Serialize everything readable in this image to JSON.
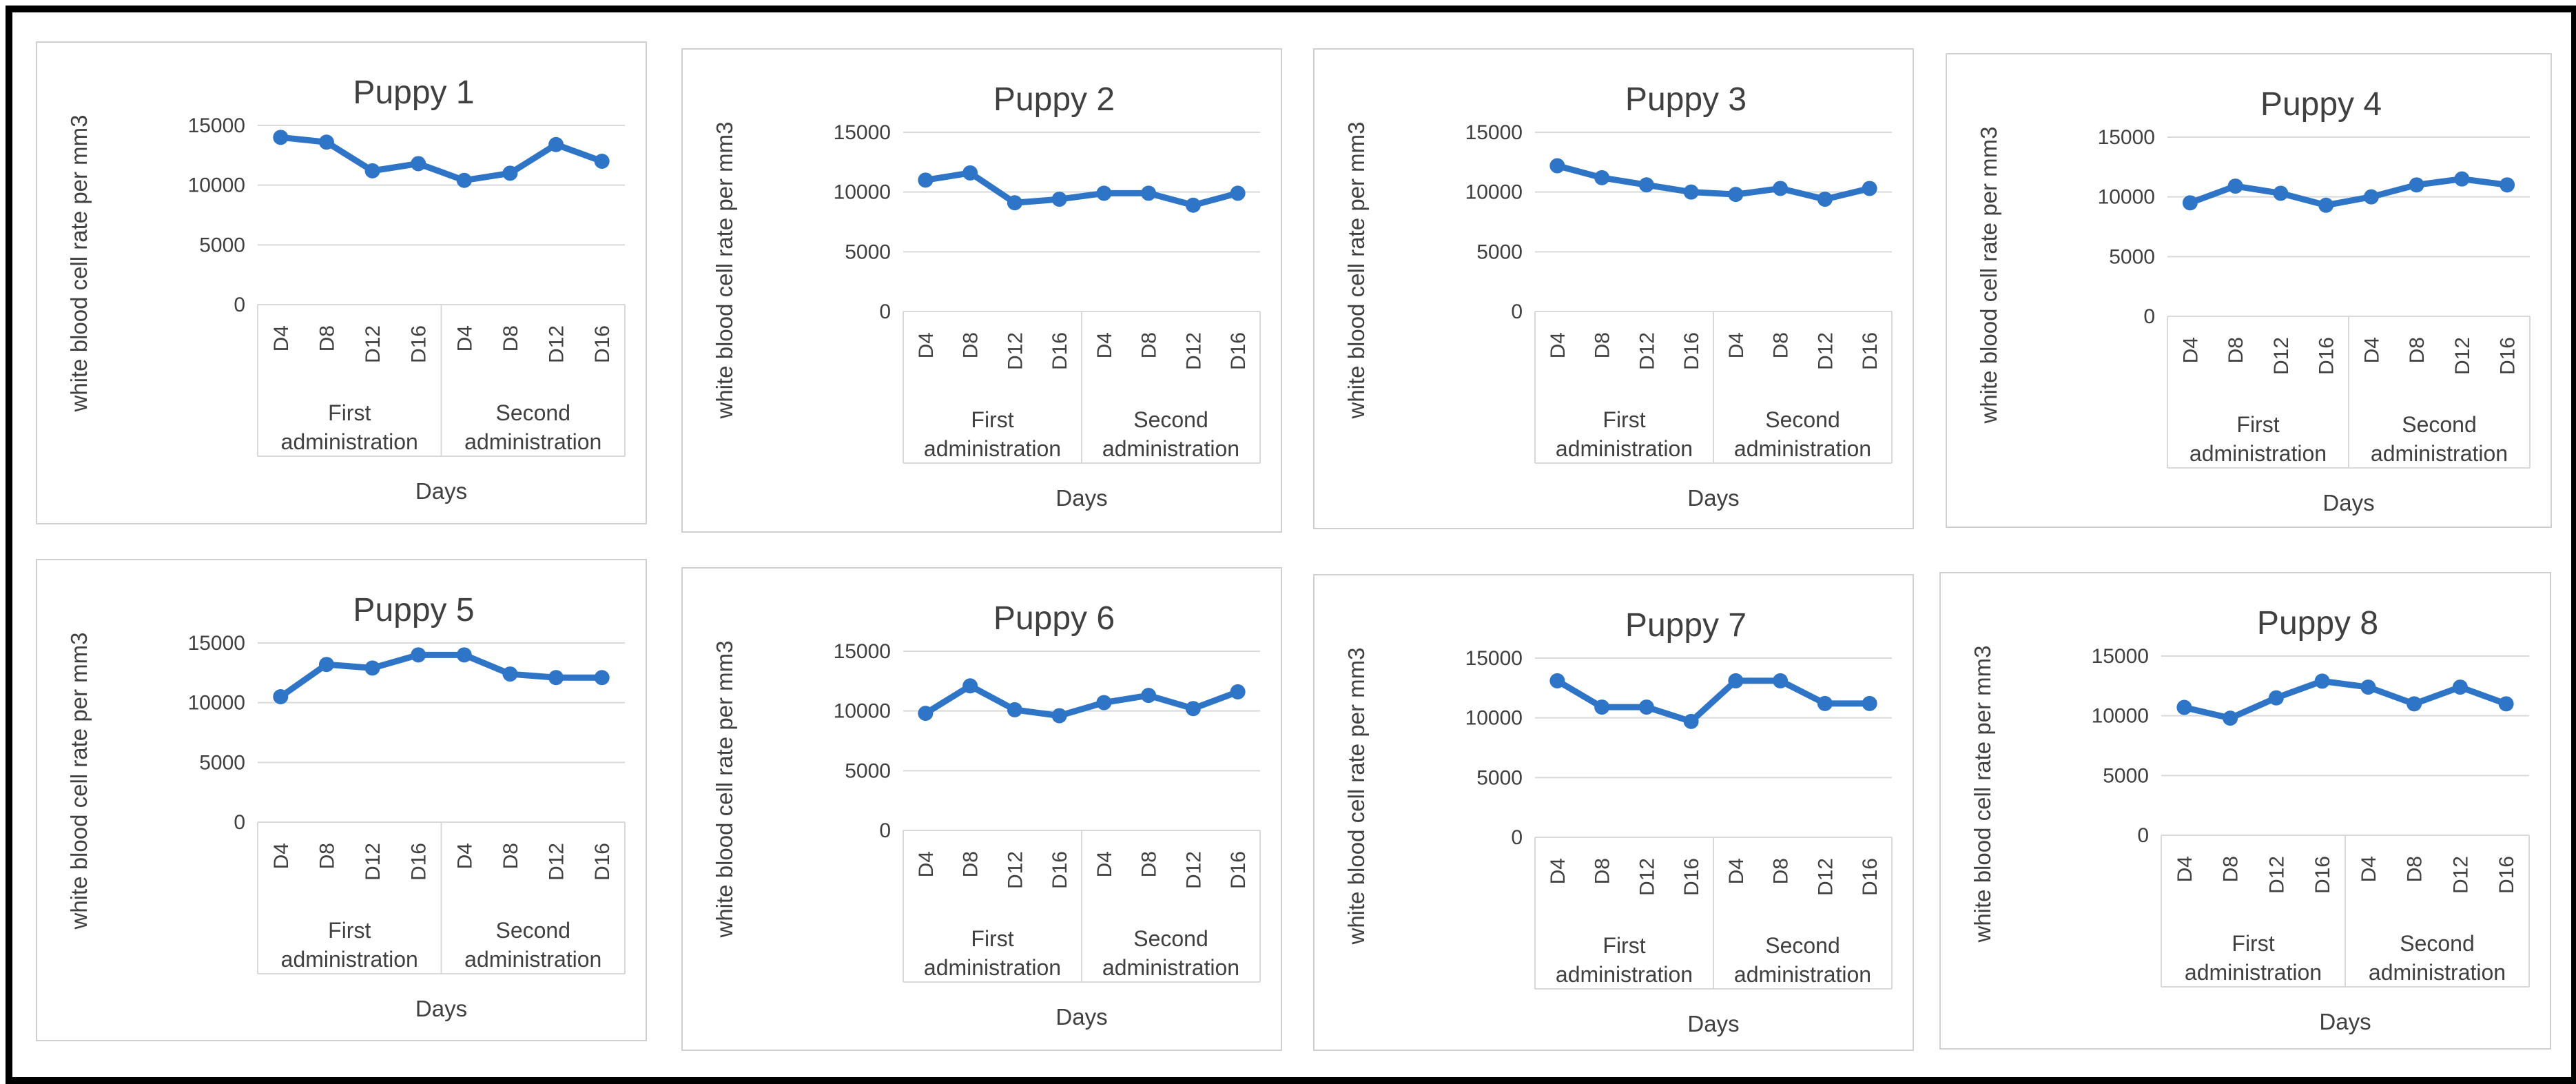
{
  "colors": {
    "series": "#2e74c7",
    "grid": "#d9d9d9",
    "text": "#404040",
    "frame": "#000000"
  },
  "chart_data": [
    {
      "type": "line",
      "title": "Puppy 1",
      "xlabel": "Days",
      "ylabel": "white blood cell rate per mm3",
      "groups": [
        {
          "label_line1": "First",
          "label_line2": "administration",
          "categories": [
            "D4",
            "D8",
            "D12",
            "D16"
          ]
        },
        {
          "label_line1": "Second",
          "label_line2": "administration",
          "categories": [
            "D4",
            "D8",
            "D12",
            "D16"
          ]
        }
      ],
      "yticks": [
        "0",
        "5000",
        "10000",
        "15000"
      ],
      "ylim": [
        0,
        15000
      ],
      "series": [
        {
          "name": "Puppy 1",
          "values": [
            14000,
            13600,
            11200,
            11800,
            10400,
            11000,
            13400,
            12000
          ]
        }
      ]
    },
    {
      "type": "line",
      "title": "Puppy 2",
      "xlabel": "Days",
      "ylabel": "white blood cell rate per mm3",
      "groups": [
        {
          "label_line1": "First",
          "label_line2": "administration",
          "categories": [
            "D4",
            "D8",
            "D12",
            "D16"
          ]
        },
        {
          "label_line1": "Second",
          "label_line2": "administration",
          "categories": [
            "D4",
            "D8",
            "D12",
            "D16"
          ]
        }
      ],
      "yticks": [
        "0",
        "5000",
        "10000",
        "15000"
      ],
      "ylim": [
        0,
        15000
      ],
      "series": [
        {
          "name": "Puppy 2",
          "values": [
            11000,
            11600,
            9100,
            9400,
            9900,
            9900,
            8900,
            9900
          ]
        }
      ]
    },
    {
      "type": "line",
      "title": "Puppy 3",
      "xlabel": "Days",
      "ylabel": "white blood cell rate per mm3",
      "groups": [
        {
          "label_line1": "First",
          "label_line2": "administration",
          "categories": [
            "D4",
            "D8",
            "D12",
            "D16"
          ]
        },
        {
          "label_line1": "Second",
          "label_line2": "administration",
          "categories": [
            "D4",
            "D8",
            "D12",
            "D16"
          ]
        }
      ],
      "yticks": [
        "0",
        "5000",
        "10000",
        "15000"
      ],
      "ylim": [
        0,
        15000
      ],
      "series": [
        {
          "name": "Puppy 3",
          "values": [
            12200,
            11200,
            10600,
            10000,
            9800,
            10300,
            9400,
            10300
          ]
        }
      ]
    },
    {
      "type": "line",
      "title": "Puppy 4",
      "xlabel": "Days",
      "ylabel": "white blood cell rate per mm3",
      "groups": [
        {
          "label_line1": "First",
          "label_line2": "administration",
          "categories": [
            "D4",
            "D8",
            "D12",
            "D16"
          ]
        },
        {
          "label_line1": "Second",
          "label_line2": "administration",
          "categories": [
            "D4",
            "D8",
            "D12",
            "D16"
          ]
        }
      ],
      "yticks": [
        "0",
        "5000",
        "10000",
        "15000"
      ],
      "ylim": [
        0,
        15000
      ],
      "series": [
        {
          "name": "Puppy 4",
          "values": [
            9500,
            10900,
            10300,
            9300,
            10000,
            11000,
            11500,
            11000
          ]
        }
      ]
    },
    {
      "type": "line",
      "title": "Puppy 5",
      "xlabel": "Days",
      "ylabel": "white blood cell rate per mm3",
      "groups": [
        {
          "label_line1": "First",
          "label_line2": "administration",
          "categories": [
            "D4",
            "D8",
            "D12",
            "D16"
          ]
        },
        {
          "label_line1": "Second",
          "label_line2": "administration",
          "categories": [
            "D4",
            "D8",
            "D12",
            "D16"
          ]
        }
      ],
      "yticks": [
        "0",
        "5000",
        "10000",
        "15000"
      ],
      "ylim": [
        0,
        15000
      ],
      "series": [
        {
          "name": "Puppy 5",
          "values": [
            10500,
            13200,
            12900,
            14000,
            14000,
            12400,
            12100,
            12100
          ]
        }
      ]
    },
    {
      "type": "line",
      "title": "Puppy 6",
      "xlabel": "Days",
      "ylabel": "white blood cell rate per mm3",
      "groups": [
        {
          "label_line1": "First",
          "label_line2": "administration",
          "categories": [
            "D4",
            "D8",
            "D12",
            "D16"
          ]
        },
        {
          "label_line1": "Second",
          "label_line2": "administration",
          "categories": [
            "D4",
            "D8",
            "D12",
            "D16"
          ]
        }
      ],
      "yticks": [
        "0",
        "5000",
        "10000",
        "15000"
      ],
      "ylim": [
        0,
        15000
      ],
      "series": [
        {
          "name": "Puppy 6",
          "values": [
            9800,
            12100,
            10100,
            9600,
            10700,
            11300,
            10200,
            11600
          ]
        }
      ]
    },
    {
      "type": "line",
      "title": "Puppy 7",
      "xlabel": "Days",
      "ylabel": "white blood cell rate per mm3",
      "groups": [
        {
          "label_line1": "First",
          "label_line2": "administration",
          "categories": [
            "D4",
            "D8",
            "D12",
            "D16"
          ]
        },
        {
          "label_line1": "Second",
          "label_line2": "administration",
          "categories": [
            "D4",
            "D8",
            "D12",
            "D16"
          ]
        }
      ],
      "yticks": [
        "0",
        "5000",
        "10000",
        "15000"
      ],
      "ylim": [
        0,
        15000
      ],
      "series": [
        {
          "name": "Puppy 7",
          "values": [
            13100,
            10900,
            10900,
            9700,
            13100,
            13100,
            11200,
            11200
          ]
        }
      ]
    },
    {
      "type": "line",
      "title": "Puppy 8",
      "xlabel": "Days",
      "ylabel": "white blood cell rate per mm3",
      "groups": [
        {
          "label_line1": "First",
          "label_line2": "administration",
          "categories": [
            "D4",
            "D8",
            "D12",
            "D16"
          ]
        },
        {
          "label_line1": "Second",
          "label_line2": "administration",
          "categories": [
            "D4",
            "D8",
            "D12",
            "D16"
          ]
        }
      ],
      "yticks": [
        "0",
        "5000",
        "10000",
        "15000"
      ],
      "ylim": [
        0,
        15000
      ],
      "series": [
        {
          "name": "Puppy 8",
          "values": [
            10700,
            9800,
            11500,
            12900,
            12400,
            11000,
            12400,
            11000
          ]
        }
      ]
    }
  ]
}
